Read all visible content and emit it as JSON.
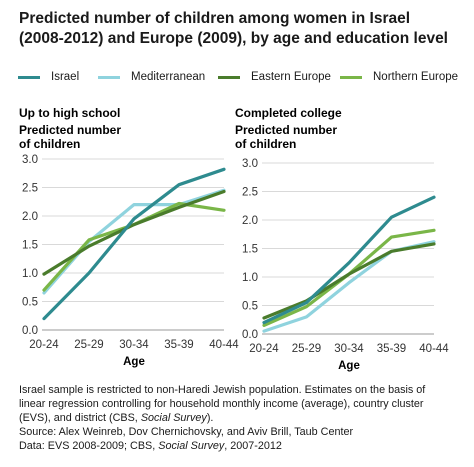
{
  "title_line1": "Predicted number of children among women in Israel",
  "title_line2": "(2008-2012) and Europe (2009), by age and education level",
  "chart_data": [
    {
      "type": "line",
      "title": "Up to high school",
      "ylabel_line1": "Predicted number",
      "ylabel_line2": "of children",
      "xlabel": "Age",
      "categories": [
        "20-24",
        "25-29",
        "30-34",
        "35-39",
        "40-44"
      ],
      "ylim": [
        0,
        3
      ],
      "yticks": [
        "0.0",
        "0.5",
        "1.0",
        "1.5",
        "2.0",
        "2.5",
        "3.0"
      ],
      "grid": true,
      "series": [
        {
          "name": "Israel",
          "values": [
            0.2,
            1.0,
            1.95,
            2.55,
            2.82
          ]
        },
        {
          "name": "Mediterranean",
          "values": [
            0.65,
            1.55,
            2.2,
            2.2,
            2.45
          ]
        },
        {
          "name": "Eastern Europe",
          "values": [
            0.98,
            1.47,
            1.85,
            2.15,
            2.43
          ]
        },
        {
          "name": "Northern Europe",
          "values": [
            0.7,
            1.58,
            1.85,
            2.22,
            2.1
          ]
        }
      ]
    },
    {
      "type": "line",
      "title": "Completed college",
      "ylabel_line1": "Predicted number",
      "ylabel_line2": "of children",
      "xlabel": "Age",
      "categories": [
        "20-24",
        "25-29",
        "30-34",
        "35-39",
        "40-44"
      ],
      "ylim": [
        0,
        3
      ],
      "yticks": [
        "0.0",
        "0.5",
        "1.0",
        "1.5",
        "2.0",
        "2.5",
        "3.0"
      ],
      "grid": true,
      "series": [
        {
          "name": "Israel",
          "values": [
            0.2,
            0.55,
            1.25,
            2.05,
            2.4
          ]
        },
        {
          "name": "Mediterranean",
          "values": [
            0.05,
            0.3,
            0.9,
            1.45,
            1.62
          ]
        },
        {
          "name": "Eastern Europe",
          "values": [
            0.28,
            0.58,
            1.05,
            1.45,
            1.58
          ]
        },
        {
          "name": "Northern Europe",
          "values": [
            0.15,
            0.48,
            1.05,
            1.7,
            1.82
          ]
        }
      ]
    }
  ],
  "legend": [
    {
      "label": "Israel",
      "color": "#2e8b8f"
    },
    {
      "label": "Mediterranean",
      "color": "#8fd3de"
    },
    {
      "label": "Eastern Europe",
      "color": "#4a7c2c"
    },
    {
      "label": "Northern Europe",
      "color": "#7ab648"
    }
  ],
  "footnote": {
    "line1": "Israel sample is restricted to non-Haredi Jewish population. Estimates on the basis of",
    "line2": "linear regression controlling for household monthly income (average), country cluster",
    "line3": "(EVS), and district (CBS, ",
    "line3_italic": "Social Survey",
    "line3_end": ").",
    "line4": "Source: Alex Weinreb, Dov Chernichovsky, and Aviv Brill, Taub Center",
    "line5_start": "Data: EVS 2008-2009; CBS, ",
    "line5_italic": "Social Survey",
    "line5_end": ", 2007-2012"
  }
}
